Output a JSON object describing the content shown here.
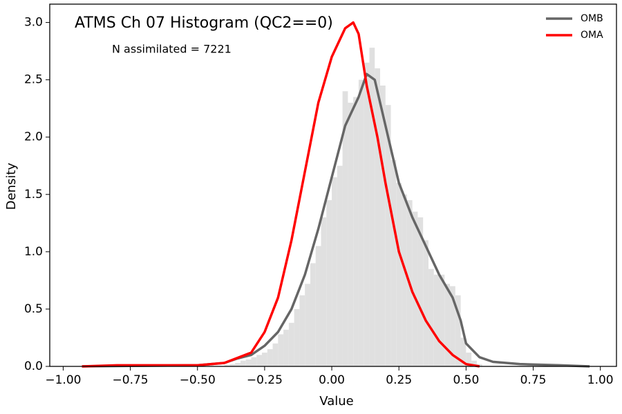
{
  "chart_data": {
    "type": "histogram",
    "title": "ATMS Ch 07 Histogram (QC2==0)",
    "annotation": "N assimilated = 7221",
    "xlabel": "Value",
    "ylabel": "Density",
    "xlim": [
      -1.05,
      1.06
    ],
    "ylim": [
      0,
      3.16
    ],
    "xticks": [
      {
        "value": -1,
        "label": "−1.00"
      },
      {
        "value": -0.75,
        "label": "−0.75"
      },
      {
        "value": -0.5,
        "label": "−0.50"
      },
      {
        "value": -0.25,
        "label": "−0.25"
      },
      {
        "value": 0,
        "label": "0.00"
      },
      {
        "value": 0.25,
        "label": "0.25"
      },
      {
        "value": 0.5,
        "label": "0.50"
      },
      {
        "value": 0.75,
        "label": "0.75"
      },
      {
        "value": 1,
        "label": "1.00"
      }
    ],
    "yticks": [
      {
        "value": 0,
        "label": "0.0"
      },
      0.5,
      {
        "value": 1,
        "label": "1.0"
      },
      1.5,
      {
        "value": 2,
        "label": "2.0"
      },
      2.5,
      {
        "value": 3,
        "label": "3.0"
      }
    ],
    "hist_color": "#e0e0e0",
    "bins": [
      -0.4,
      -0.38,
      -0.36,
      -0.34,
      -0.32,
      -0.3,
      -0.28,
      -0.26,
      -0.24,
      -0.22,
      -0.2,
      -0.18,
      -0.16,
      -0.14,
      -0.12,
      -0.1,
      -0.08,
      -0.06,
      -0.04,
      -0.02,
      0.0,
      0.02,
      0.04,
      0.06,
      0.08,
      0.1,
      0.12,
      0.14,
      0.16,
      0.18,
      0.2,
      0.22,
      0.24,
      0.26,
      0.28,
      0.3,
      0.32,
      0.34,
      0.36,
      0.38,
      0.4,
      0.42,
      0.44,
      0.46,
      0.48,
      0.5,
      0.52,
      0.54,
      0.56
    ],
    "counts": [
      0.01,
      0.02,
      0.03,
      0.05,
      0.06,
      0.08,
      0.1,
      0.12,
      0.15,
      0.2,
      0.28,
      0.32,
      0.38,
      0.5,
      0.62,
      0.72,
      0.9,
      1.05,
      1.3,
      1.45,
      1.65,
      1.75,
      2.4,
      2.3,
      2.35,
      2.5,
      2.65,
      2.78,
      2.6,
      2.45,
      2.28,
      1.8,
      1.6,
      1.5,
      1.45,
      1.35,
      1.3,
      1.1,
      0.85,
      0.8,
      0.8,
      0.72,
      0.7,
      0.62,
      0.25,
      0.12,
      0.05,
      0.02
    ],
    "legend": "upper right",
    "series": [
      {
        "name": "OMB",
        "color": "#666666",
        "x": [
          -0.93,
          -0.5,
          -0.4,
          -0.35,
          -0.3,
          -0.25,
          -0.2,
          -0.15,
          -0.1,
          -0.05,
          0,
          0.05,
          0.1,
          0.13,
          0.16,
          0.2,
          0.25,
          0.3,
          0.35,
          0.4,
          0.45,
          0.48,
          0.5,
          0.55,
          0.6,
          0.7,
          0.85,
          0.96
        ],
        "values": [
          0,
          0.01,
          0.03,
          0.07,
          0.1,
          0.18,
          0.3,
          0.5,
          0.8,
          1.2,
          1.65,
          2.1,
          2.35,
          2.55,
          2.5,
          2.1,
          1.6,
          1.3,
          1.05,
          0.8,
          0.6,
          0.4,
          0.2,
          0.08,
          0.04,
          0.02,
          0.01,
          0
        ]
      },
      {
        "name": "OMA",
        "color": "#ff0000",
        "x": [
          -0.93,
          -0.8,
          -0.6,
          -0.5,
          -0.4,
          -0.3,
          -0.25,
          -0.2,
          -0.15,
          -0.1,
          -0.05,
          0,
          0.05,
          0.08,
          0.1,
          0.13,
          0.17,
          0.2,
          0.25,
          0.3,
          0.35,
          0.4,
          0.45,
          0.5,
          0.55
        ],
        "values": [
          0,
          0.01,
          0.01,
          0.01,
          0.03,
          0.12,
          0.3,
          0.6,
          1.1,
          1.7,
          2.3,
          2.7,
          2.95,
          3.0,
          2.9,
          2.45,
          2.0,
          1.6,
          1.0,
          0.65,
          0.4,
          0.22,
          0.1,
          0.02,
          0
        ]
      }
    ]
  }
}
